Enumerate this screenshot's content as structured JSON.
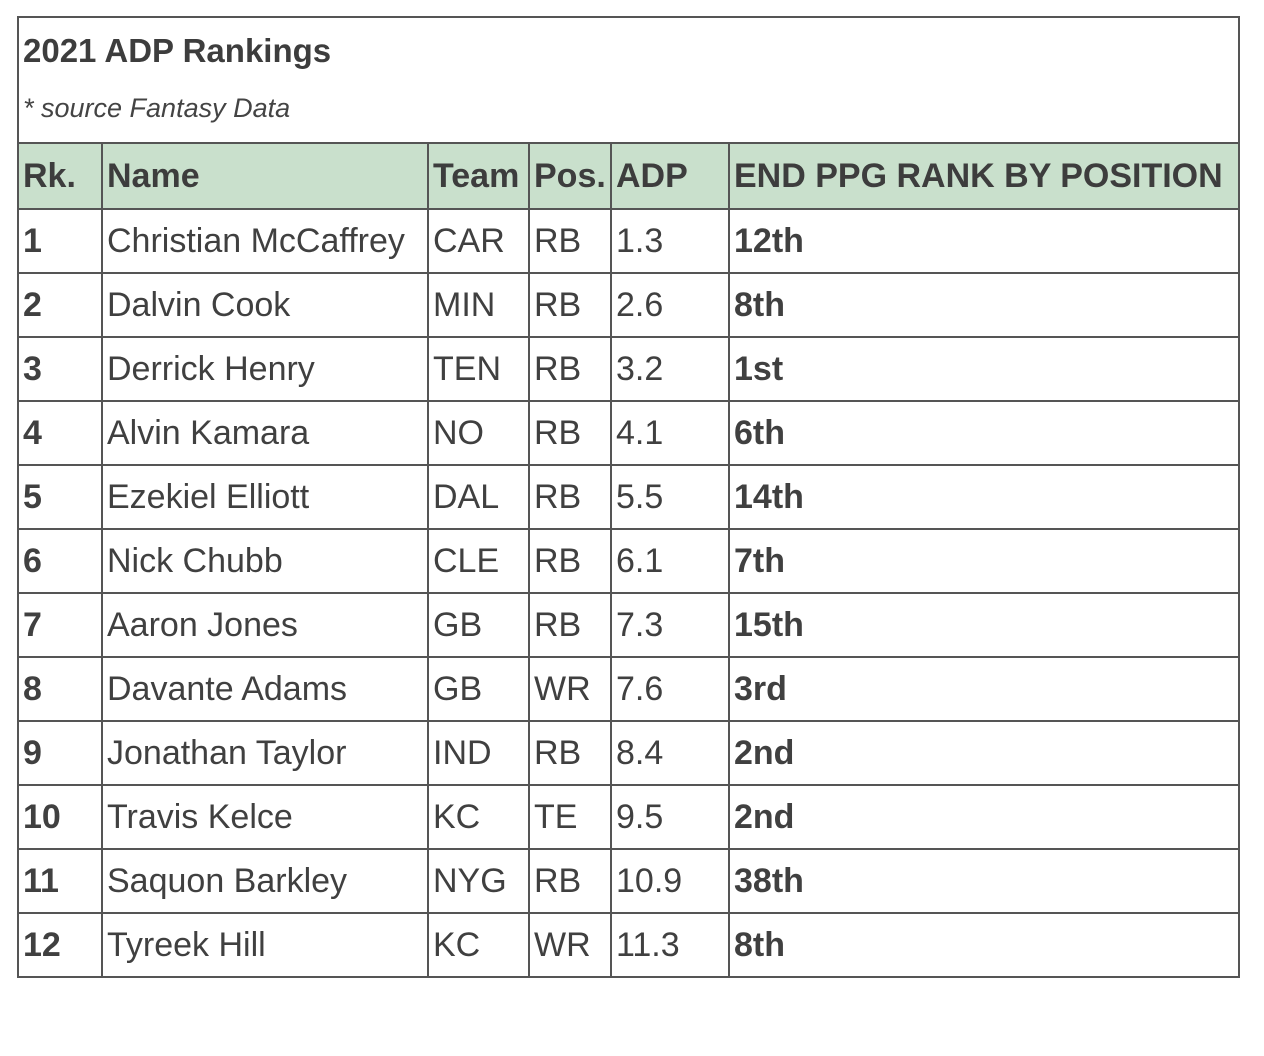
{
  "table": {
    "title": "2021 ADP Rankings",
    "source_note": "* source Fantasy Data",
    "headers": {
      "rank": "Rk.",
      "name": "Name",
      "team": "Team",
      "pos": "Pos.",
      "adp": "ADP",
      "end_rank": "END PPG RANK BY POSITION"
    },
    "rows": [
      {
        "rank": "1",
        "name": "Christian McCaffrey",
        "team": "CAR",
        "pos": "RB",
        "adp": "1.3",
        "end_rank": "12th"
      },
      {
        "rank": "2",
        "name": "Dalvin Cook",
        "team": "MIN",
        "pos": "RB",
        "adp": "2.6",
        "end_rank": "8th"
      },
      {
        "rank": "3",
        "name": "Derrick Henry",
        "team": "TEN",
        "pos": "RB",
        "adp": "3.2",
        "end_rank": "1st"
      },
      {
        "rank": "4",
        "name": "Alvin Kamara",
        "team": "NO",
        "pos": "RB",
        "adp": "4.1",
        "end_rank": "6th"
      },
      {
        "rank": "5",
        "name": "Ezekiel Elliott",
        "team": "DAL",
        "pos": "RB",
        "adp": "5.5",
        "end_rank": "14th"
      },
      {
        "rank": "6",
        "name": "Nick Chubb",
        "team": "CLE",
        "pos": "RB",
        "adp": "6.1",
        "end_rank": "7th"
      },
      {
        "rank": "7",
        "name": "Aaron Jones",
        "team": "GB",
        "pos": "RB",
        "adp": "7.3",
        "end_rank": "15th"
      },
      {
        "rank": "8",
        "name": "Davante Adams",
        "team": "GB",
        "pos": "WR",
        "adp": "7.6",
        "end_rank": "3rd"
      },
      {
        "rank": "9",
        "name": "Jonathan Taylor",
        "team": "IND",
        "pos": "RB",
        "adp": "8.4",
        "end_rank": "2nd"
      },
      {
        "rank": "10",
        "name": "Travis Kelce",
        "team": "KC",
        "pos": "TE",
        "adp": "9.5",
        "end_rank": "2nd"
      },
      {
        "rank": "11",
        "name": "Saquon Barkley",
        "team": "NYG",
        "pos": "RB",
        "adp": "10.9",
        "end_rank": "38th"
      },
      {
        "rank": "12",
        "name": "Tyreek Hill",
        "team": "KC",
        "pos": "WR",
        "adp": "11.3",
        "end_rank": "8th"
      }
    ]
  }
}
